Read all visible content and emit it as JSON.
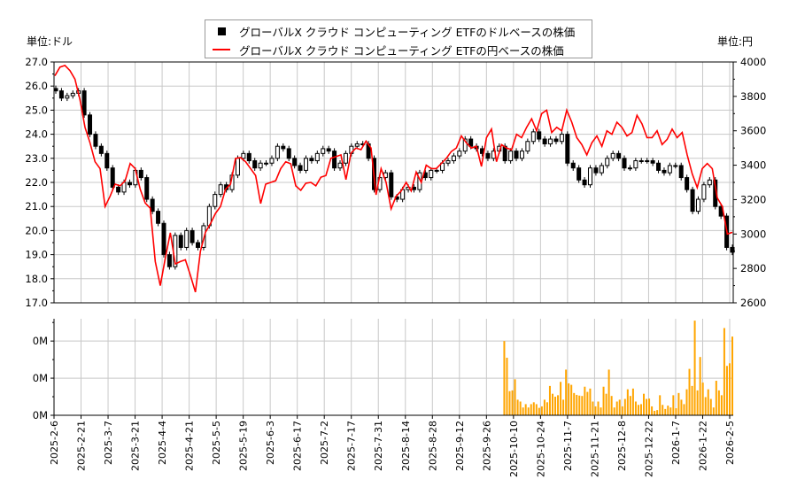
{
  "units": {
    "left": "単位:ドル",
    "right": "単位:円"
  },
  "legend": [
    {
      "label": "グローバルX クラウド コンピューティング ETFのドルベースの株価",
      "color": "#000000",
      "marker": "square"
    },
    {
      "label": "グローバルX クラウド コンピューティング ETFの円ベースの株価",
      "color": "#ff0000",
      "marker": "line"
    }
  ],
  "chart_data": [
    {
      "type": "candlestick+line",
      "x_range": [
        "2025-2-6",
        "2026-2-5"
      ],
      "x_tick_labels": [
        "2025-2-6",
        "2025-2-21",
        "2025-3-7",
        "2025-3-21",
        "2025-4-4",
        "2025-4-21",
        "2025-5-5",
        "2025-5-19",
        "2025-6-3",
        "2025-6-17",
        "2025-7-2",
        "2025-7-17",
        "2025-7-31",
        "2025-8-14",
        "2025-8-28",
        "2025-9-12",
        "2025-9-26",
        "2025-10-10",
        "2025-10-24",
        "2025-11-7",
        "2025-11-21",
        "2025-12-8",
        "2025-12-22",
        "2026-1-7",
        "2026-1-22",
        "2026-2-5"
      ],
      "y_left": {
        "label": "単位:ドル",
        "range": [
          17.0,
          27.0
        ],
        "ticks": [
          "27.0",
          "26.0",
          "25.0",
          "24.0",
          "23.0",
          "22.0",
          "21.0",
          "20.0",
          "19.0",
          "18.0",
          "17.0"
        ]
      },
      "y_right": {
        "label": "単位:円",
        "range": [
          2600,
          4000
        ],
        "ticks": [
          "4000",
          "3800",
          "3600",
          "3400",
          "3200",
          "3000",
          "2800",
          "2600"
        ]
      },
      "grid": true,
      "legend_position": "top-center",
      "series": [
        {
          "name": "グローバルX クラウド コンピューティング ETFのドルベースの株価",
          "axis": "left",
          "style": "candlestick",
          "color": "#000000",
          "close": [
            25.8,
            25.5,
            25.6,
            25.7,
            25.8,
            24.8,
            24.0,
            23.5,
            23.2,
            22.6,
            21.8,
            21.6,
            22.0,
            21.9,
            22.5,
            22.2,
            21.3,
            20.8,
            20.3,
            19.0,
            18.5,
            19.8,
            19.3,
            20.0,
            19.5,
            19.3,
            20.2,
            21.0,
            21.5,
            21.9,
            21.7,
            22.3,
            23.0,
            23.2,
            22.9,
            22.6,
            22.8,
            22.8,
            23.0,
            23.5,
            23.4,
            23.0,
            22.7,
            22.5,
            23.0,
            22.9,
            23.2,
            23.4,
            23.3,
            22.6,
            22.8,
            23.2,
            23.5,
            23.6,
            23.6,
            23.0,
            21.7,
            22.2,
            22.4,
            21.4,
            21.3,
            21.7,
            21.8,
            21.7,
            22.4,
            22.2,
            22.5,
            22.5,
            22.8,
            22.9,
            23.1,
            23.3,
            23.8,
            23.5,
            23.4,
            23.2,
            23.0,
            23.3,
            23.5,
            22.9,
            23.3,
            23.0,
            23.3,
            23.7,
            24.1,
            23.8,
            23.6,
            23.8,
            23.7,
            24.0,
            22.8,
            22.6,
            22.1,
            21.9,
            22.6,
            22.4,
            22.7,
            23.0,
            23.2,
            23.0,
            22.6,
            22.6,
            22.9,
            22.9,
            22.9,
            22.8,
            22.5,
            22.4,
            22.7,
            22.7,
            22.2,
            21.7,
            20.8,
            21.3,
            21.9,
            22.1,
            21.0,
            20.6,
            19.3,
            19.1
          ]
        },
        {
          "name": "グローバルX クラウド コンピューティング ETFの円ベースの株価",
          "axis": "right",
          "style": "line",
          "color": "#ff0000",
          "values": [
            3920,
            3970,
            3980,
            3950,
            3900,
            3780,
            3620,
            3530,
            3420,
            3380,
            3160,
            3220,
            3290,
            3280,
            3310,
            3410,
            3380,
            3260,
            3180,
            3150,
            2840,
            2700,
            2860,
            3007,
            2826,
            2840,
            2850,
            2760,
            2662,
            2900,
            3010,
            3060,
            3120,
            3160,
            3260,
            3290,
            3440,
            3444,
            3420,
            3380,
            3340,
            3177,
            3290,
            3300,
            3310,
            3380,
            3420,
            3408,
            3280,
            3254,
            3295,
            3300,
            3280,
            3330,
            3340,
            3440,
            3450,
            3460,
            3316,
            3470,
            3500,
            3490,
            3540,
            3500,
            3228,
            3380,
            3300,
            3146,
            3220,
            3250,
            3300,
            3250,
            3360,
            3300,
            3400,
            3380,
            3380,
            3410,
            3440,
            3480,
            3500,
            3570,
            3530,
            3500,
            3510,
            3393,
            3560,
            3610,
            3420,
            3520,
            3500,
            3490,
            3580,
            3560,
            3620,
            3670,
            3600,
            3700,
            3720,
            3590,
            3620,
            3600,
            3720,
            3650,
            3560,
            3520,
            3460,
            3530,
            3570,
            3510,
            3600,
            3580,
            3650,
            3620,
            3570,
            3590,
            3690,
            3640,
            3560,
            3560,
            3600,
            3520,
            3550,
            3610,
            3560,
            3590,
            3460,
            3350,
            3270,
            3380,
            3410,
            3380,
            3210,
            3160,
            3000,
            3010
          ]
        }
      ]
    },
    {
      "type": "bar",
      "x_range": [
        "2025-2-6",
        "2026-2-5"
      ],
      "y_ticks": [
        "0M",
        "0M",
        "0M"
      ],
      "y_range_millions": [
        0,
        0.26
      ],
      "grid": true,
      "color": "#ffa500",
      "values_millions": [
        0.2,
        0.155,
        0.065,
        0.067,
        0.097,
        0.042,
        0.037,
        0.021,
        0.03,
        0.021,
        0.03,
        0.035,
        0.03,
        0.02,
        0.024,
        0.042,
        0.035,
        0.079,
        0.058,
        0.05,
        0.054,
        0.09,
        0.042,
        0.123,
        0.086,
        0.082,
        0.06,
        0.055,
        0.053,
        0.052,
        0.077,
        0.063,
        0.072,
        0.037,
        0.024,
        0.037,
        0.021,
        0.077,
        0.058,
        0.123,
        0.052,
        0.021,
        0.037,
        0.042,
        0.024,
        0.044,
        0.07,
        0.052,
        0.072,
        0.037,
        0.028,
        0.03,
        0.058,
        0.044,
        0.045,
        0.024,
        0.012,
        0.014,
        0.054,
        0.028,
        0.017,
        0.026,
        0.021,
        0.054,
        0.019,
        0.06,
        0.042,
        0.03,
        0.07,
        0.125,
        0.079,
        0.255,
        0.067,
        0.157,
        0.088,
        0.049,
        0.07,
        0.044,
        0.021,
        0.093,
        0.067,
        0.054,
        0.235,
        0.133,
        0.14,
        0.212
      ]
    }
  ]
}
